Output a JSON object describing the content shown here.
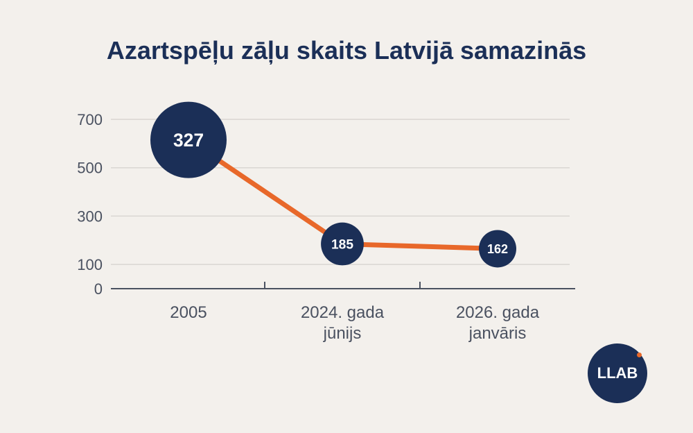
{
  "chart_data": {
    "type": "line",
    "title": "Azartspēļu zāļu skaits Latvijā samazinās",
    "categories": [
      [
        "2005"
      ],
      [
        "2024. gada",
        "jūnijs"
      ],
      [
        "2026. gada",
        "janvāris"
      ]
    ],
    "values": [
      327,
      185,
      162
    ],
    "value_labels": [
      "327",
      "185",
      "162"
    ],
    "plot_positions": [
      615,
      185,
      165
    ],
    "y_ticks": [
      0,
      100,
      300,
      500,
      700
    ],
    "ylim": [
      0,
      700
    ],
    "xlabel": "",
    "ylabel": "",
    "grid": true
  },
  "logo": {
    "text": "LLAB"
  },
  "colors": {
    "line": "#e8682a",
    "marker": "#1b2f57",
    "grid": "#d9d6d2",
    "axis": "#4a5160",
    "title": "#1b2f57",
    "logo_dot": "#e8682a"
  }
}
